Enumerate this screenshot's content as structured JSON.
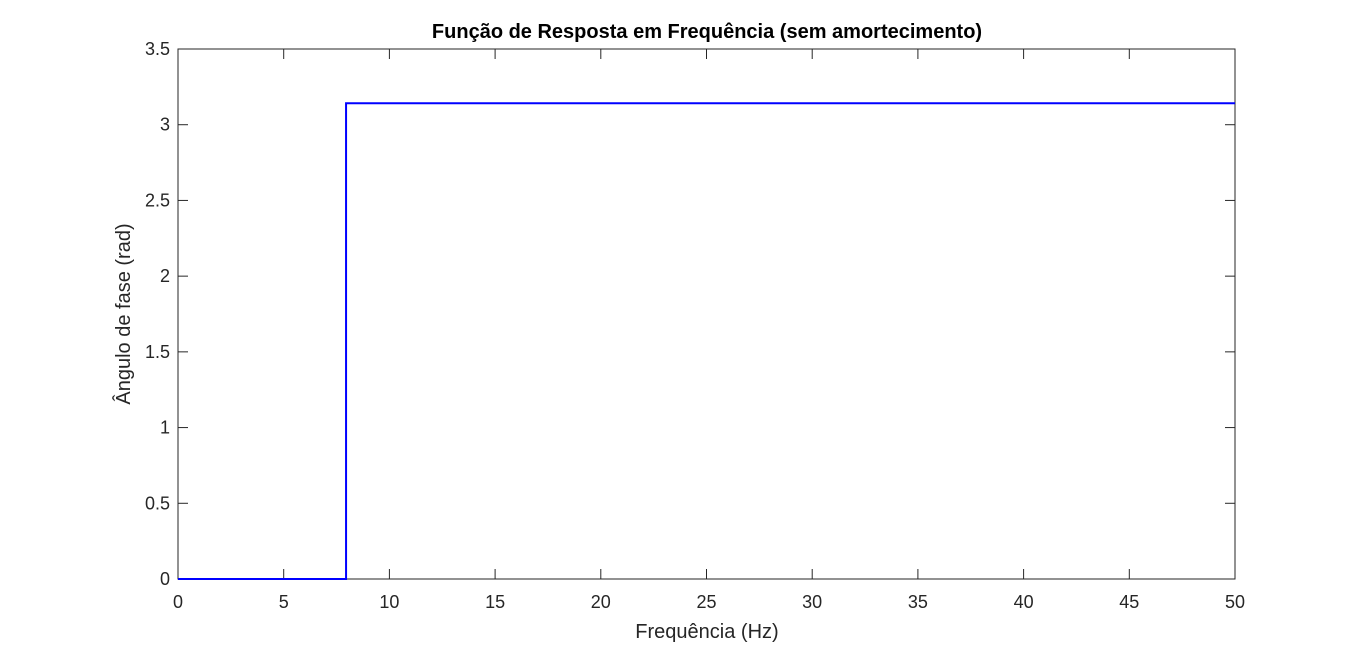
{
  "chart_data": {
    "type": "line",
    "title": "Função de Resposta em Frequência (sem amortecimento)",
    "xlabel": "Frequência (Hz)",
    "ylabel": "Ângulo de fase (rad)",
    "xlim": [
      0,
      50
    ],
    "ylim": [
      0,
      3.5
    ],
    "xticks": [
      0,
      5,
      10,
      15,
      20,
      25,
      30,
      35,
      40,
      45,
      50
    ],
    "yticks": [
      0,
      0.5,
      1,
      1.5,
      2,
      2.5,
      3,
      3.5
    ],
    "xtick_labels": [
      "0",
      "5",
      "10",
      "15",
      "20",
      "25",
      "30",
      "35",
      "40",
      "45",
      "50"
    ],
    "ytick_labels": [
      "0",
      "0.5",
      "1",
      "1.5",
      "2",
      "2.5",
      "3",
      "3.5"
    ],
    "grid": false,
    "series": [
      {
        "color": "#0000ff",
        "x": [
          0,
          7.95,
          7.95,
          50
        ],
        "y": [
          0,
          0,
          3.1416,
          3.1416
        ]
      }
    ]
  }
}
